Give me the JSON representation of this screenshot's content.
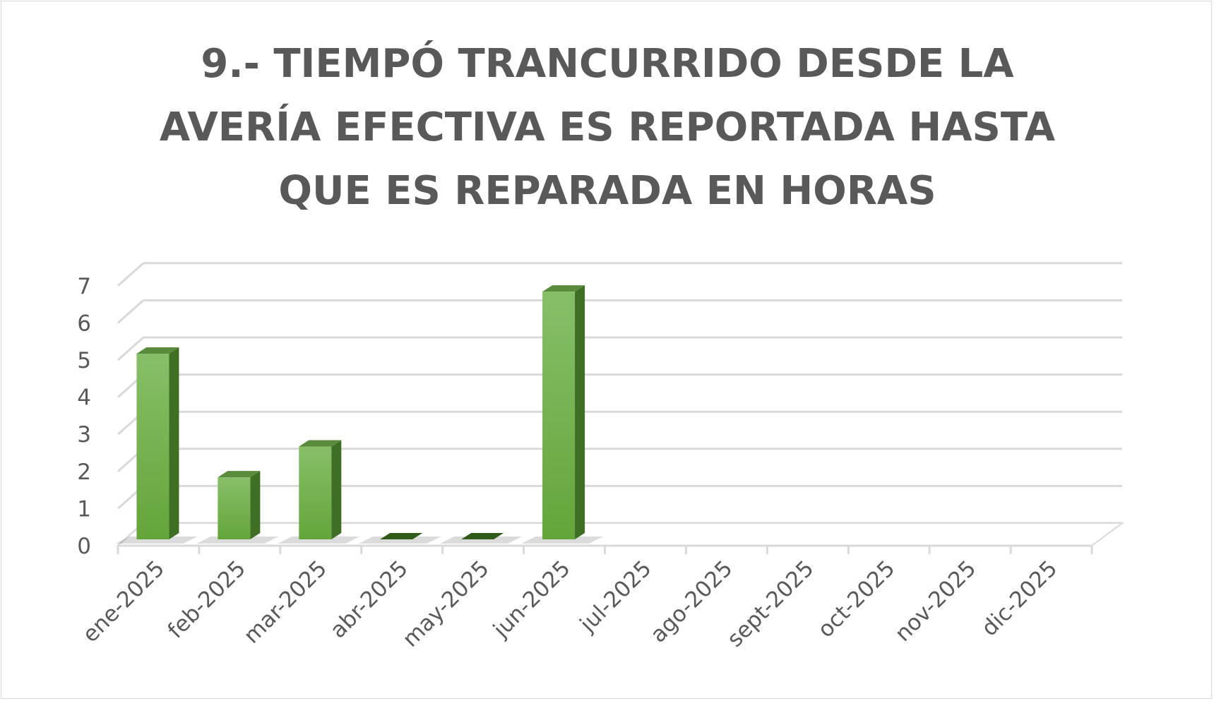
{
  "chart_data": {
    "type": "bar",
    "title_lines": [
      "9.- TIEMPÓ TRANCURRIDO DESDE LA",
      "AVERÍA EFECTIVA ES REPORTADA HASTA",
      "QUE ES REPARADA EN HORAS"
    ],
    "categories": [
      "ene-2025",
      "feb-2025",
      "mar-2025",
      "abr-2025",
      "may-2025",
      "jun-2025",
      "jul-2025",
      "ago-2025",
      "sept-2025",
      "oct-2025",
      "nov-2025",
      "dic-2025"
    ],
    "values": [
      5,
      1.67,
      2.5,
      0,
      0,
      6.67,
      null,
      null,
      null,
      null,
      null,
      null
    ],
    "y_ticks": [
      "0",
      "1",
      "2",
      "3",
      "4",
      "5",
      "6",
      "7"
    ],
    "ylim": [
      0,
      7
    ],
    "grid": true,
    "legend": "none",
    "style": "3d-column",
    "bar_color": "#70ad47"
  }
}
